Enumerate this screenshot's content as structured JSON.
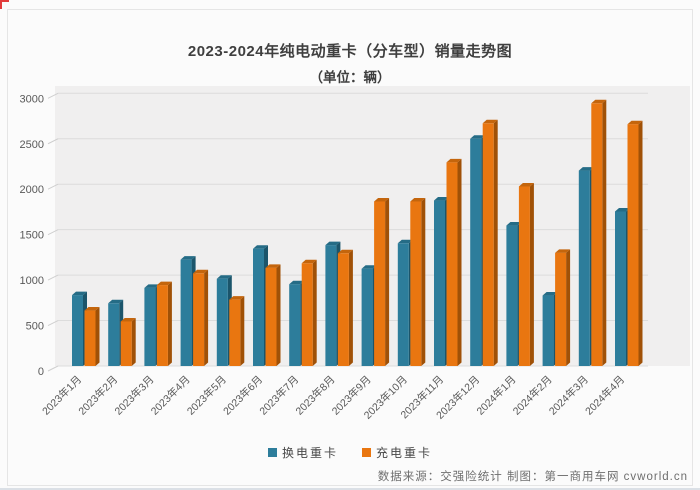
{
  "title": {
    "line1": "2023-2024年纯电动重卡（分车型）销量走势图",
    "line2": "（单位：辆）"
  },
  "chart_data": {
    "type": "bar",
    "style": "3d-column",
    "title": "2023-2024年纯电动重卡（分车型）销量走势图",
    "subtitle": "（单位：辆）",
    "categories": [
      "2023年1月",
      "2023年2月",
      "2023年3月",
      "2023年4月",
      "2023年5月",
      "2023年6月",
      "2023年7月",
      "2023年8月",
      "2023年9月",
      "2023年10月",
      "2023年11月",
      "2023年12月",
      "2024年1月",
      "2024年2月",
      "2024年3月",
      "2024年4月"
    ],
    "series": [
      {
        "name": "换电重卡",
        "color": "#2d7d9b",
        "side_color": "#1b556b",
        "top_color": "#256c86",
        "values": [
          780,
          690,
          860,
          1170,
          960,
          1290,
          900,
          1330,
          1070,
          1350,
          1820,
          2500,
          1545,
          775,
          2150,
          1700
        ]
      },
      {
        "name": "充电重卡",
        "color": "#e97610",
        "side_color": "#a05107",
        "top_color": "#c4650c",
        "values": [
          610,
          490,
          890,
          1020,
          730,
          1080,
          1130,
          1240,
          1810,
          1810,
          2240,
          2670,
          1975,
          1245,
          2890,
          2660
        ]
      }
    ],
    "ylim": [
      0,
      3000
    ],
    "yticks": [
      0,
      500,
      1000,
      1500,
      2000,
      2500,
      3000
    ],
    "grid": true,
    "legend_position": "bottom",
    "axis_text_color": "#595959",
    "gridline_color": "#dcdcdc",
    "wall_color": "#f0efef"
  },
  "legend": {
    "items": [
      {
        "label": "换电重卡",
        "color": "#2d7d9b"
      },
      {
        "label": "充电重卡",
        "color": "#e97610"
      }
    ]
  },
  "footer": {
    "text": "数据来源：交强险统计 制图：第一商用车网 cvworld.cn"
  }
}
